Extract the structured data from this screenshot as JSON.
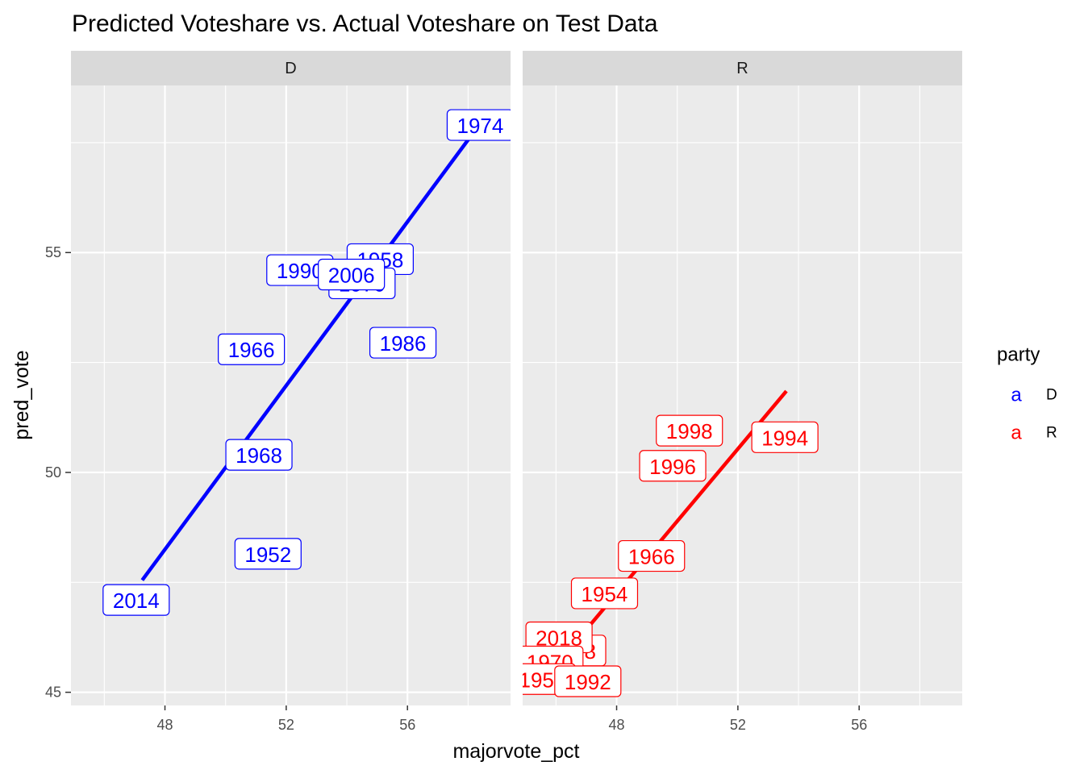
{
  "chart_data": {
    "type": "scatter",
    "title": "Predicted Voteshare vs. Actual Voteshare on Test Data",
    "xlabel": "majorvote_pct",
    "ylabel": "pred_vote",
    "xlim": [
      44.9,
      59.4
    ],
    "ylim": [
      44.7,
      58.8
    ],
    "x_ticks": [
      48,
      52,
      56
    ],
    "y_ticks": [
      45,
      50,
      55
    ],
    "grid": true,
    "legend": {
      "title": "party",
      "position": "right",
      "key_glyph": "a",
      "entries": [
        {
          "label": "D",
          "color": "#0000ff"
        },
        {
          "label": "R",
          "color": "#ff0000"
        }
      ]
    },
    "panels": [
      {
        "strip": "D",
        "color": "#0000ff",
        "fit_line": {
          "x": [
            47.25,
            58.2
          ],
          "y": [
            47.55,
            57.75
          ]
        },
        "labels": [
          {
            "text": "1974",
            "x": 58.4,
            "y": 57.9
          },
          {
            "text": "1958",
            "x": 55.1,
            "y": 54.85
          },
          {
            "text": "1990",
            "x": 52.45,
            "y": 54.6
          },
          {
            "text": "1970",
            "x": 54.5,
            "y": 54.3
          },
          {
            "text": "2006",
            "x": 54.15,
            "y": 54.5
          },
          {
            "text": "1966",
            "x": 50.85,
            "y": 52.8
          },
          {
            "text": "1986",
            "x": 55.85,
            "y": 52.95
          },
          {
            "text": "1968",
            "x": 51.1,
            "y": 50.4
          },
          {
            "text": "1952",
            "x": 51.4,
            "y": 48.15
          },
          {
            "text": "2014",
            "x": 47.05,
            "y": 47.1
          }
        ]
      },
      {
        "strip": "R",
        "color": "#ff0000",
        "fit_line": {
          "x": [
            45.75,
            53.6
          ],
          "y": [
            45.4,
            51.85
          ]
        },
        "labels": [
          {
            "text": "1998",
            "x": 50.4,
            "y": 50.95
          },
          {
            "text": "1994",
            "x": 53.55,
            "y": 50.8
          },
          {
            "text": "1996",
            "x": 49.85,
            "y": 50.15
          },
          {
            "text": "1966",
            "x": 49.15,
            "y": 48.1
          },
          {
            "text": "1954",
            "x": 47.6,
            "y": 47.25
          },
          {
            "text": "1978",
            "x": 46.55,
            "y": 45.95
          },
          {
            "text": "2018",
            "x": 46.1,
            "y": 46.25
          },
          {
            "text": "1970",
            "x": 45.8,
            "y": 45.7
          },
          {
            "text": "1958",
            "x": 45.55,
            "y": 45.3
          },
          {
            "text": "1992",
            "x": 47.05,
            "y": 45.25
          }
        ]
      }
    ]
  }
}
